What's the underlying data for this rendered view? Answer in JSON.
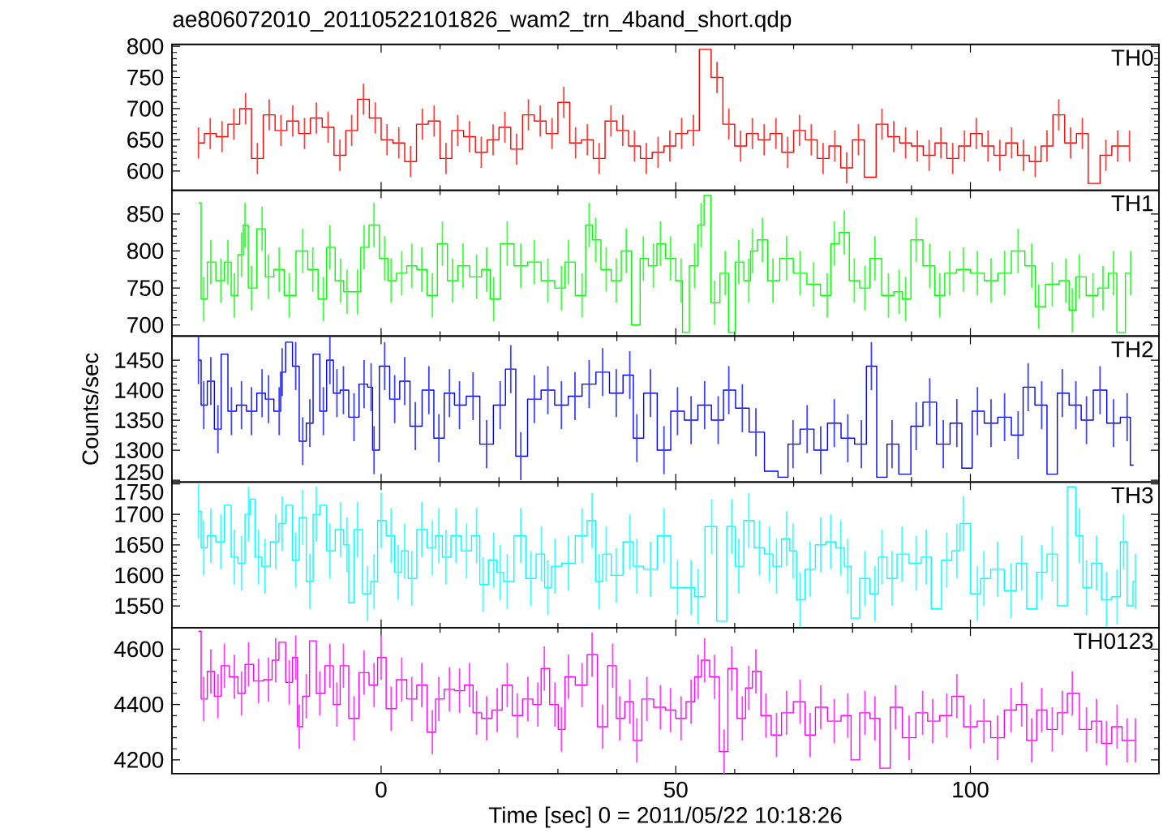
{
  "chart_data": [
    {
      "type": "step",
      "title": "ae806072010_20110522101826_wam2_trn_4band_short.qdp",
      "xlim": [
        -35.5,
        132
      ],
      "xticks": [
        0,
        50,
        100
      ],
      "ylim": [
        569,
        803
      ],
      "yticks": [
        600,
        650,
        700,
        750,
        800
      ],
      "tick_labels": "y",
      "series": [
        {
          "name": "TH0",
          "color": "#ff0000",
          "x": [
            -31,
            -29,
            -27,
            -25,
            -23,
            -21,
            -19,
            -17,
            -15,
            -13,
            -11,
            -9,
            -7,
            -5,
            -3,
            -1,
            1,
            3,
            5,
            7,
            9,
            11,
            13,
            15,
            17,
            19,
            21,
            23,
            25,
            27,
            29,
            31,
            33,
            35,
            37,
            39,
            41,
            43,
            45,
            47,
            49,
            51,
            53,
            55,
            57,
            59,
            61,
            63,
            65,
            67,
            69,
            71,
            73,
            75,
            77,
            79,
            81,
            83,
            85,
            87,
            89,
            91,
            93,
            95,
            97,
            99,
            101,
            103,
            105,
            107,
            109,
            111,
            113,
            115,
            117,
            119,
            121,
            123,
            125,
            127
          ],
          "values": [
            645,
            660,
            655,
            675,
            700,
            620,
            690,
            665,
            680,
            660,
            685,
            670,
            625,
            665,
            715,
            685,
            650,
            645,
            615,
            675,
            680,
            620,
            665,
            655,
            630,
            650,
            670,
            635,
            690,
            680,
            660,
            710,
            645,
            650,
            620,
            680,
            665,
            640,
            620,
            630,
            640,
            660,
            665,
            795,
            750,
            675,
            640,
            660,
            650,
            660,
            630,
            665,
            650,
            620,
            640,
            605,
            650,
            590,
            675,
            655,
            645,
            640,
            625,
            645,
            620,
            640,
            660,
            640,
            625,
            645,
            625,
            615,
            640,
            690,
            645,
            660,
            580,
            625,
            640,
            640
          ],
          "errors": [
            25,
            25,
            25,
            25,
            25,
            25,
            25,
            25,
            25,
            25,
            25,
            25,
            25,
            25,
            25,
            25,
            25,
            25,
            25,
            25,
            25,
            25,
            25,
            25,
            25,
            25,
            25,
            25,
            25,
            25,
            25,
            25,
            25,
            25,
            25,
            25,
            25,
            25,
            25,
            25,
            25,
            25,
            25,
            null,
            25,
            25,
            25,
            25,
            25,
            25,
            25,
            25,
            25,
            25,
            25,
            25,
            25,
            null,
            25,
            25,
            25,
            25,
            25,
            25,
            25,
            25,
            25,
            25,
            25,
            25,
            25,
            25,
            25,
            25,
            25,
            25,
            null,
            25,
            25,
            25
          ]
        }
      ]
    },
    {
      "type": "step",
      "xlim": [
        -35.5,
        132
      ],
      "xticks": [
        0,
        50,
        100
      ],
      "ylim": [
        685,
        882
      ],
      "yticks": [
        700,
        750,
        800,
        850
      ],
      "tick_labels": "y",
      "series": [
        {
          "name": "TH1",
          "color": "#00ff00",
          "x": [
            -31.0,
            -30.1,
            -28.9,
            -27.2,
            -26.0,
            -24.9,
            -23.7,
            -23.1,
            -22.0,
            -20.2,
            -19.1,
            -17.3,
            -15.6,
            -13.3,
            -11.6,
            -9.8,
            -8.7,
            -6.9,
            -5.8,
            -4.0,
            -2.9,
            -1.2,
            0.6,
            1.7,
            3.5,
            5.2,
            6.9,
            8.7,
            10.4,
            12.1,
            13.9,
            16.2,
            17.9,
            19.1,
            21.4,
            23.7,
            26.0,
            28.3,
            30.6,
            31.8,
            34.1,
            35.3,
            36.4,
            38.2,
            39.9,
            41.6,
            43.4,
            44.5,
            46.2,
            47.4,
            49.1,
            50.9,
            51.4,
            53.2,
            54.3,
            55.3,
            56.6,
            58.4,
            59.5,
            60.7,
            62.4,
            63.0,
            64.7,
            66.5,
            68.8,
            71.1,
            73.4,
            75.7,
            76.9,
            78.6,
            80.3,
            82.1,
            83.8,
            86.1,
            87.9,
            89.0,
            90.8,
            93.1,
            94.8,
            96.5,
            98.8,
            101.2,
            103.5,
            105.8,
            108.1,
            110.4,
            111.6,
            113.9,
            116.2,
            117.3,
            118.5,
            120.8,
            122.5,
            124.3,
            125.4,
            127.2
          ],
          "values": [
            865,
            735,
            785,
            760,
            785,
            740,
            795,
            835,
            750,
            830,
            765,
            775,
            740,
            800,
            775,
            735,
            805,
            760,
            745,
            745,
            805,
            835,
            790,
            760,
            770,
            780,
            775,
            740,
            810,
            760,
            780,
            765,
            775,
            735,
            810,
            780,
            785,
            760,
            750,
            785,
            740,
            835,
            815,
            775,
            760,
            800,
            700,
            790,
            780,
            810,
            790,
            760,
            690,
            780,
            835,
            875,
            730,
            770,
            690,
            785,
            760,
            800,
            815,
            760,
            790,
            770,
            755,
            740,
            810,
            825,
            760,
            750,
            790,
            740,
            745,
            735,
            815,
            780,
            740,
            770,
            775,
            770,
            760,
            770,
            800,
            780,
            725,
            755,
            760,
            720,
            765,
            740,
            750,
            770,
            690,
            770
          ],
          "errors": [
            null,
            30,
            30,
            30,
            30,
            30,
            30,
            30,
            30,
            30,
            30,
            30,
            30,
            30,
            30,
            30,
            30,
            30,
            30,
            30,
            30,
            30,
            30,
            30,
            30,
            30,
            30,
            30,
            30,
            30,
            30,
            30,
            30,
            30,
            30,
            30,
            30,
            30,
            30,
            30,
            30,
            30,
            30,
            30,
            30,
            30,
            null,
            30,
            30,
            30,
            30,
            30,
            null,
            30,
            30,
            null,
            30,
            30,
            null,
            30,
            30,
            30,
            30,
            30,
            30,
            30,
            30,
            30,
            30,
            30,
            30,
            30,
            30,
            30,
            30,
            30,
            30,
            30,
            30,
            30,
            30,
            30,
            30,
            30,
            30,
            30,
            30,
            30,
            30,
            30,
            30,
            30,
            30,
            30,
            null,
            30
          ]
        }
      ]
    },
    {
      "type": "step",
      "ylabel": "Counts/sec",
      "xlim": [
        -35.5,
        132
      ],
      "xticks": [
        0,
        50,
        100
      ],
      "ylim": [
        1247,
        1490
      ],
      "yticks": [
        1250,
        1300,
        1350,
        1400,
        1450
      ],
      "tick_labels": "y",
      "series": [
        {
          "name": "TH2",
          "color": "#0000ff",
          "x": [
            -31.0,
            -30.1,
            -28.9,
            -27.7,
            -26.6,
            -25.4,
            -23.7,
            -22.0,
            -20.2,
            -19.1,
            -17.3,
            -16.8,
            -15.6,
            -14.5,
            -13.3,
            -12.1,
            -11.0,
            -9.8,
            -8.7,
            -7.5,
            -6.4,
            -4.6,
            -2.9,
            -1.7,
            -1.2,
            0.6,
            2.3,
            4.0,
            5.8,
            8.1,
            9.8,
            11.6,
            13.3,
            15.6,
            17.9,
            20.2,
            22.0,
            23.7,
            26.0,
            28.3,
            30.6,
            32.9,
            35.3,
            37.6,
            39.9,
            42.2,
            43.4,
            45.7,
            48.0,
            50.3,
            52.6,
            54.9,
            57.2,
            59.0,
            61.3,
            63.6,
            66.5,
            68.2,
            69.9,
            72.3,
            74.6,
            76.9,
            79.2,
            81.5,
            83.2,
            85.0,
            86.7,
            89.0,
            90.8,
            93.1,
            95.4,
            97.7,
            99.4,
            101.2,
            103.5,
            105.8,
            108.1,
            109.8,
            112.1,
            113.9,
            115.6,
            117.9,
            119.7,
            122.0,
            124.3,
            126.6,
            127.7
          ],
          "values": [
            1450,
            1375,
            1415,
            1335,
            1460,
            1365,
            1375,
            1365,
            1395,
            1385,
            1365,
            1430,
            1480,
            1440,
            1315,
            1345,
            1460,
            1365,
            1450,
            1395,
            1400,
            1355,
            1410,
            1405,
            1300,
            1440,
            1385,
            1415,
            1340,
            1400,
            1320,
            1395,
            1375,
            1390,
            1310,
            1375,
            1435,
            1290,
            1385,
            1400,
            1375,
            1390,
            1410,
            1430,
            1395,
            1425,
            1320,
            1395,
            1300,
            1365,
            1350,
            1375,
            1350,
            1400,
            1370,
            1330,
            1265,
            1255,
            1310,
            1335,
            1300,
            1345,
            1320,
            1310,
            1440,
            1255,
            1310,
            1260,
            1340,
            1380,
            1310,
            1345,
            1270,
            1365,
            1345,
            1355,
            1325,
            1405,
            1375,
            1260,
            1395,
            1375,
            1350,
            1400,
            1345,
            1355,
            1275
          ],
          "errors": [
            40,
            40,
            40,
            40,
            null,
            40,
            40,
            40,
            40,
            40,
            40,
            40,
            null,
            40,
            40,
            40,
            null,
            40,
            40,
            40,
            40,
            40,
            40,
            40,
            40,
            40,
            40,
            40,
            40,
            40,
            40,
            40,
            40,
            40,
            40,
            40,
            40,
            40,
            40,
            40,
            40,
            40,
            40,
            40,
            40,
            40,
            40,
            40,
            40,
            40,
            40,
            40,
            40,
            40,
            40,
            40,
            null,
            null,
            40,
            40,
            40,
            40,
            40,
            40,
            40,
            null,
            40,
            null,
            40,
            40,
            40,
            40,
            null,
            40,
            40,
            40,
            40,
            40,
            40,
            null,
            40,
            40,
            40,
            40,
            40,
            40,
            null
          ]
        }
      ]
    },
    {
      "type": "step",
      "xlim": [
        -35.5,
        132
      ],
      "xticks": [
        0,
        50,
        100
      ],
      "ylim": [
        1514,
        1753
      ],
      "yticks": [
        1550,
        1600,
        1650,
        1700,
        1750
      ],
      "tick_labels": "y",
      "series": [
        {
          "name": "TH3",
          "color": "#00ffff",
          "x": [
            -31.0,
            -30.1,
            -28.9,
            -27.2,
            -26.0,
            -24.9,
            -23.7,
            -22.5,
            -22.0,
            -20.8,
            -19.7,
            -17.9,
            -16.8,
            -15.6,
            -14.5,
            -13.3,
            -12.1,
            -11.0,
            -9.8,
            -8.7,
            -6.9,
            -5.8,
            -5.2,
            -4.0,
            -2.3,
            -1.2,
            0.0,
            1.7,
            2.9,
            4.0,
            5.2,
            6.9,
            8.7,
            9.8,
            11.0,
            12.7,
            14.5,
            16.2,
            17.3,
            19.1,
            20.2,
            21.4,
            23.7,
            25.4,
            27.2,
            28.3,
            29.5,
            31.8,
            34.1,
            35.8,
            37.0,
            38.2,
            39.9,
            42.2,
            43.4,
            45.7,
            48.0,
            50.3,
            52.6,
            53.8,
            56.1,
            57.8,
            59.5,
            60.7,
            62.4,
            64.2,
            65.9,
            67.1,
            68.8,
            69.9,
            71.1,
            72.8,
            74.6,
            76.3,
            78.0,
            79.2,
            80.3,
            82.1,
            83.8,
            85.0,
            86.7,
            88.4,
            90.8,
            92.5,
            94.2,
            96.0,
            97.7,
            98.8,
            101.2,
            102.3,
            104.6,
            106.9,
            108.7,
            110.4,
            112.1,
            113.9,
            115.6,
            117.3,
            118.5,
            119.7,
            121.4,
            123.1,
            124.9,
            126.0,
            127.2,
            128.0
          ],
          "values": [
            1705,
            1645,
            1665,
            1655,
            1715,
            1630,
            1620,
            1700,
            1725,
            1630,
            1615,
            1655,
            1685,
            1715,
            1625,
            1695,
            1590,
            1700,
            1715,
            1640,
            1675,
            1650,
            1555,
            1675,
            1570,
            1590,
            1690,
            1665,
            1605,
            1640,
            1595,
            1675,
            1645,
            1665,
            1630,
            1665,
            1640,
            1665,
            1585,
            1625,
            1605,
            1590,
            1665,
            1595,
            1635,
            1580,
            1615,
            1620,
            1665,
            1690,
            1590,
            1635,
            1600,
            1655,
            1615,
            1610,
            1665,
            1580,
            1580,
            1565,
            1680,
            1525,
            1680,
            1615,
            1690,
            1645,
            1635,
            1615,
            1660,
            1640,
            1560,
            1610,
            1650,
            1655,
            1645,
            1615,
            1530,
            1595,
            1570,
            1630,
            1595,
            1635,
            1620,
            1630,
            1545,
            1625,
            1640,
            1685,
            1570,
            1595,
            1610,
            1575,
            1620,
            1545,
            1605,
            1635,
            1550,
            1745,
            1665,
            1580,
            1620,
            1560,
            1565,
            1655,
            1550,
            1590
          ],
          "errors": [
            45,
            45,
            45,
            45,
            null,
            45,
            45,
            45,
            null,
            45,
            45,
            45,
            45,
            null,
            45,
            45,
            45,
            45,
            null,
            45,
            45,
            45,
            null,
            45,
            45,
            45,
            45,
            45,
            45,
            45,
            45,
            45,
            45,
            45,
            45,
            45,
            45,
            45,
            45,
            45,
            45,
            45,
            45,
            45,
            45,
            45,
            45,
            45,
            45,
            45,
            45,
            45,
            45,
            45,
            45,
            45,
            45,
            45,
            45,
            45,
            45,
            null,
            45,
            45,
            45,
            45,
            45,
            45,
            45,
            45,
            45,
            45,
            45,
            45,
            45,
            45,
            null,
            45,
            45,
            45,
            45,
            45,
            45,
            45,
            null,
            45,
            45,
            45,
            45,
            45,
            45,
            45,
            45,
            null,
            45,
            45,
            null,
            null,
            45,
            45,
            45,
            45,
            45,
            45,
            null,
            45
          ]
        }
      ]
    },
    {
      "type": "step",
      "xlabel": "Time [sec] 0 = 2011/05/22 10:18:26",
      "xlim": [
        -35.5,
        132
      ],
      "xticks": [
        0,
        50,
        100
      ],
      "ylim": [
        4150,
        4677
      ],
      "yticks": [
        4200,
        4400,
        4600
      ],
      "series": [
        {
          "name": "TH0123",
          "color": "#ff00ff",
          "x": [
            -31.0,
            -30.1,
            -28.9,
            -27.7,
            -26.6,
            -24.9,
            -23.7,
            -22.5,
            -20.8,
            -19.1,
            -17.9,
            -16.8,
            -15.6,
            -14.5,
            -13.9,
            -12.7,
            -11.6,
            -10.4,
            -8.7,
            -7.5,
            -6.4,
            -4.6,
            -2.9,
            -1.2,
            0.0,
            1.7,
            3.5,
            5.2,
            6.9,
            8.7,
            9.8,
            11.6,
            13.3,
            15.0,
            16.2,
            17.9,
            19.7,
            21.4,
            23.1,
            24.9,
            26.6,
            27.7,
            29.5,
            30.6,
            31.8,
            34.1,
            35.8,
            37.6,
            39.3,
            40.5,
            42.2,
            43.4,
            45.1,
            47.4,
            49.1,
            50.9,
            52.6,
            53.8,
            54.9,
            56.6,
            58.2,
            59.5,
            61.3,
            62.4,
            63.6,
            65.3,
            67.1,
            68.8,
            71.1,
            72.8,
            74.6,
            76.9,
            79.2,
            80.3,
            82.1,
            83.8,
            85.5,
            87.3,
            89.6,
            91.9,
            93.6,
            96.0,
            97.7,
            100.0,
            102.3,
            104.6,
            106.9,
            108.7,
            110.4,
            112.1,
            113.9,
            115.6,
            117.3,
            119.7,
            121.4,
            123.1,
            124.9,
            126.6,
            128.0
          ],
          "values": [
            4665,
            4420,
            4520,
            4430,
            4540,
            4500,
            4440,
            4545,
            4485,
            4490,
            4560,
            4625,
            4480,
            4570,
            4320,
            4430,
            4630,
            4440,
            4540,
            4400,
            4540,
            4350,
            4515,
            4470,
            4570,
            4385,
            4490,
            4420,
            4470,
            4300,
            4420,
            4455,
            4450,
            4470,
            4370,
            4350,
            4380,
            4470,
            4360,
            4420,
            4400,
            4530,
            4400,
            4310,
            4500,
            4470,
            4580,
            4320,
            4540,
            4350,
            4410,
            4270,
            4420,
            4390,
            4380,
            4350,
            4410,
            4500,
            4560,
            4500,
            4230,
            4530,
            4350,
            4460,
            4520,
            4360,
            4290,
            4370,
            4410,
            4290,
            4390,
            4340,
            4360,
            4200,
            4370,
            4350,
            4170,
            4390,
            4280,
            4370,
            4340,
            4360,
            4430,
            4320,
            4340,
            4280,
            4380,
            4400,
            4270,
            4380,
            4310,
            4370,
            4440,
            4310,
            4340,
            4260,
            4320,
            4270,
            4270
          ],
          "errors": [
            null,
            80,
            80,
            80,
            80,
            80,
            80,
            80,
            80,
            80,
            80,
            null,
            80,
            80,
            80,
            80,
            null,
            80,
            80,
            80,
            80,
            80,
            80,
            80,
            80,
            80,
            80,
            80,
            80,
            80,
            80,
            80,
            80,
            80,
            80,
            80,
            80,
            80,
            80,
            80,
            80,
            80,
            80,
            80,
            80,
            80,
            80,
            80,
            80,
            80,
            80,
            80,
            80,
            80,
            80,
            80,
            80,
            80,
            80,
            80,
            80,
            80,
            80,
            80,
            80,
            80,
            80,
            80,
            80,
            80,
            80,
            80,
            80,
            null,
            80,
            80,
            null,
            80,
            80,
            80,
            80,
            80,
            80,
            80,
            80,
            80,
            80,
            80,
            80,
            80,
            80,
            80,
            80,
            80,
            80,
            80,
            80,
            80,
            80
          ]
        }
      ]
    }
  ]
}
